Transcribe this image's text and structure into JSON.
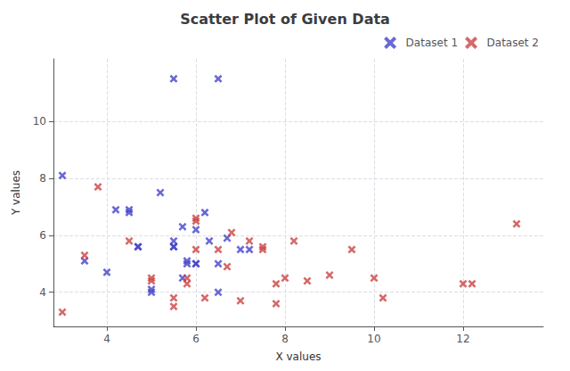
{
  "chart_data": {
    "type": "scatter",
    "title": "Scatter Plot of Given Data",
    "xlabel": "X values",
    "ylabel": "Y values",
    "series": [
      {
        "name": "Dataset 1",
        "color": "#4444cc",
        "marker": "x",
        "x": [
          3.0,
          3.5,
          4.0,
          4.2,
          4.5,
          4.5,
          4.7,
          4.7,
          5.0,
          5.0,
          5.2,
          5.5,
          5.5,
          5.5,
          5.5,
          5.7,
          5.7,
          5.8,
          5.8,
          6.0,
          6.0,
          6.0,
          6.2,
          6.3,
          6.5,
          6.5,
          6.5,
          6.7,
          7.0,
          7.2
        ],
        "values": [
          8.1,
          5.1,
          4.7,
          6.9,
          6.8,
          6.9,
          5.6,
          5.6,
          4.1,
          4.0,
          7.5,
          5.8,
          5.6,
          5.6,
          11.5,
          6.3,
          4.5,
          5.0,
          5.1,
          6.2,
          5.0,
          5.0,
          6.8,
          5.8,
          4.0,
          5.0,
          11.5,
          5.9,
          5.5,
          5.5
        ]
      },
      {
        "name": "Dataset 2",
        "color": "#cc4444",
        "marker": "x",
        "x": [
          3.0,
          3.5,
          3.8,
          4.5,
          5.0,
          5.0,
          5.5,
          5.5,
          5.8,
          5.8,
          6.0,
          6.0,
          6.0,
          6.2,
          6.5,
          6.7,
          6.8,
          7.0,
          7.2,
          7.5,
          7.5,
          7.8,
          7.8,
          8.0,
          8.2,
          8.5,
          9.0,
          9.5,
          10.0,
          10.2,
          12.0,
          12.2,
          13.2
        ],
        "values": [
          3.3,
          5.3,
          7.7,
          5.8,
          4.4,
          4.5,
          3.8,
          3.5,
          4.3,
          4.5,
          6.6,
          6.5,
          5.5,
          3.8,
          5.5,
          4.9,
          6.1,
          3.7,
          5.8,
          5.5,
          5.6,
          4.3,
          3.6,
          4.5,
          5.8,
          4.4,
          4.6,
          5.5,
          4.5,
          3.8,
          4.3,
          4.3,
          6.4
        ]
      }
    ],
    "xlim": [
      2.8,
      13.8
    ],
    "ylim": [
      2.8,
      12.2
    ],
    "xticks": [
      4,
      6,
      8,
      10,
      12
    ],
    "yticks": [
      4,
      6,
      8,
      10
    ],
    "grid": true,
    "legend": "upper right"
  }
}
